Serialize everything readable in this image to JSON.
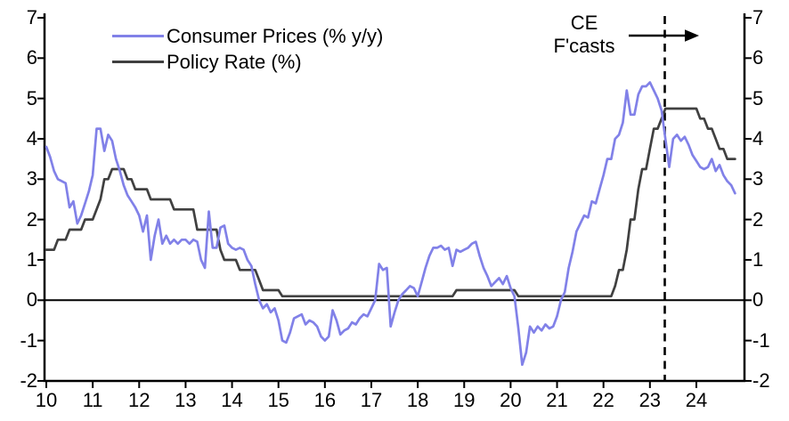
{
  "annotation": {
    "line1": "CE",
    "line2": "F'casts"
  },
  "chart_data": {
    "type": "line",
    "title": "",
    "xlabel": "",
    "ylabel": "",
    "x_axis_years_start": 2010,
    "x_tick_labels": [
      "10",
      "11",
      "12",
      "13",
      "14",
      "15",
      "16",
      "17",
      "18",
      "19",
      "20",
      "21",
      "22",
      "23",
      "24"
    ],
    "y_tick_labels": [
      "7",
      "6",
      "5",
      "4",
      "3",
      "2",
      "1",
      "0",
      "-1",
      "-2"
    ],
    "y_tick_values": [
      7,
      6,
      5,
      4,
      3,
      2,
      1,
      0,
      -1,
      -2
    ],
    "ylim": [
      -2,
      7
    ],
    "xlim_years": [
      10,
      25.05
    ],
    "grid": false,
    "zero_line": true,
    "dual_axis_mirrored": true,
    "forecast_divider_year": 23.32,
    "forecast_note": "CE F'casts",
    "legend_position": "top-left-inside",
    "series": [
      {
        "name": "Consumer Prices (% y/y)",
        "color": "#8181e8",
        "start_year_fraction": 10.0,
        "step_per_point_years": 0.08333,
        "monthly_values": [
          3.8,
          3.55,
          3.2,
          3.0,
          2.95,
          2.9,
          2.3,
          2.45,
          1.9,
          2.1,
          2.4,
          2.7,
          3.1,
          4.25,
          4.25,
          3.7,
          4.1,
          3.95,
          3.5,
          3.2,
          2.85,
          2.6,
          2.45,
          2.3,
          2.1,
          1.7,
          2.1,
          1.0,
          1.6,
          2.0,
          1.4,
          1.6,
          1.4,
          1.5,
          1.4,
          1.5,
          1.5,
          1.4,
          1.5,
          1.45,
          1.0,
          0.8,
          2.2,
          1.3,
          1.3,
          1.8,
          1.85,
          1.4,
          1.3,
          1.25,
          1.3,
          1.25,
          1.0,
          0.85,
          0.4,
          0.0,
          -0.2,
          -0.1,
          -0.3,
          -0.2,
          -0.5,
          -1.0,
          -1.05,
          -0.8,
          -0.45,
          -0.4,
          -0.35,
          -0.6,
          -0.5,
          -0.55,
          -0.65,
          -0.9,
          -1.0,
          -0.9,
          -0.25,
          -0.5,
          -0.85,
          -0.75,
          -0.7,
          -0.55,
          -0.6,
          -0.45,
          -0.35,
          -0.4,
          -0.2,
          0.0,
          0.9,
          0.75,
          0.8,
          -0.65,
          -0.3,
          0.0,
          0.15,
          0.25,
          0.35,
          0.3,
          0.1,
          0.45,
          0.8,
          1.1,
          1.3,
          1.3,
          1.35,
          1.25,
          1.3,
          0.85,
          1.25,
          1.2,
          1.25,
          1.3,
          1.4,
          1.45,
          1.1,
          0.8,
          0.6,
          0.35,
          0.45,
          0.55,
          0.4,
          0.6,
          0.3,
          0.1,
          -0.7,
          -1.6,
          -1.3,
          -0.65,
          -0.8,
          -0.65,
          -0.75,
          -0.6,
          -0.7,
          -0.65,
          -0.4,
          0.0,
          0.2,
          0.8,
          1.2,
          1.7,
          1.9,
          2.1,
          2.05,
          2.45,
          2.4,
          2.75,
          3.1,
          3.5,
          3.5,
          4.0,
          4.1,
          4.4,
          5.2,
          4.6,
          4.6,
          5.1,
          5.3,
          5.3,
          5.4,
          5.2,
          5.0,
          4.7,
          4.0,
          3.3,
          4.0,
          4.1,
          3.95,
          4.05,
          3.85,
          3.6,
          3.45,
          3.3,
          3.25,
          3.3,
          3.5,
          3.2,
          3.35,
          3.1,
          2.95,
          2.85,
          2.65
        ]
      },
      {
        "name": "Policy Rate (%)",
        "color": "#404040",
        "start_year_fraction": 10.0,
        "step_per_point_years": 0.08333,
        "monthly_values": [
          1.25,
          1.25,
          1.25,
          1.5,
          1.5,
          1.5,
          1.75,
          1.75,
          1.75,
          1.75,
          2.0,
          2.0,
          2.0,
          2.25,
          2.5,
          3.0,
          3.0,
          3.25,
          3.25,
          3.25,
          3.25,
          3.0,
          3.0,
          2.75,
          2.75,
          2.75,
          2.75,
          2.5,
          2.5,
          2.5,
          2.5,
          2.5,
          2.5,
          2.25,
          2.25,
          2.25,
          2.25,
          2.25,
          2.25,
          1.75,
          1.75,
          1.75,
          1.75,
          1.75,
          1.75,
          1.25,
          1.0,
          1.0,
          1.0,
          1.0,
          0.75,
          0.75,
          0.75,
          0.75,
          0.75,
          0.5,
          0.25,
          0.25,
          0.25,
          0.25,
          0.25,
          0.1,
          0.1,
          0.1,
          0.1,
          0.1,
          0.1,
          0.1,
          0.1,
          0.1,
          0.1,
          0.1,
          0.1,
          0.1,
          0.1,
          0.1,
          0.1,
          0.1,
          0.1,
          0.1,
          0.1,
          0.1,
          0.1,
          0.1,
          0.1,
          0.1,
          0.1,
          0.1,
          0.1,
          0.1,
          0.1,
          0.1,
          0.1,
          0.1,
          0.1,
          0.1,
          0.1,
          0.1,
          0.1,
          0.1,
          0.1,
          0.1,
          0.1,
          0.1,
          0.1,
          0.1,
          0.25,
          0.25,
          0.25,
          0.25,
          0.25,
          0.25,
          0.25,
          0.25,
          0.25,
          0.25,
          0.25,
          0.25,
          0.25,
          0.25,
          0.25,
          0.25,
          0.1,
          0.1,
          0.1,
          0.1,
          0.1,
          0.1,
          0.1,
          0.1,
          0.1,
          0.1,
          0.1,
          0.1,
          0.1,
          0.1,
          0.1,
          0.1,
          0.1,
          0.1,
          0.1,
          0.1,
          0.1,
          0.1,
          0.1,
          0.1,
          0.1,
          0.35,
          0.75,
          0.75,
          1.25,
          2.0,
          2.0,
          2.75,
          3.25,
          3.25,
          3.75,
          4.25,
          4.25,
          4.5,
          4.75,
          4.75,
          4.75,
          4.75,
          4.75,
          4.75,
          4.75,
          4.75,
          4.75,
          4.5,
          4.5,
          4.25,
          4.25,
          4.0,
          3.75,
          3.75,
          3.5,
          3.5,
          3.5
        ]
      }
    ]
  },
  "colors": {
    "axis": "#000000",
    "consumer_prices_line": "#8181e8",
    "policy_rate_line": "#404040",
    "dashed_divider": "#000000",
    "arrow": "#000000",
    "background": "#ffffff"
  }
}
